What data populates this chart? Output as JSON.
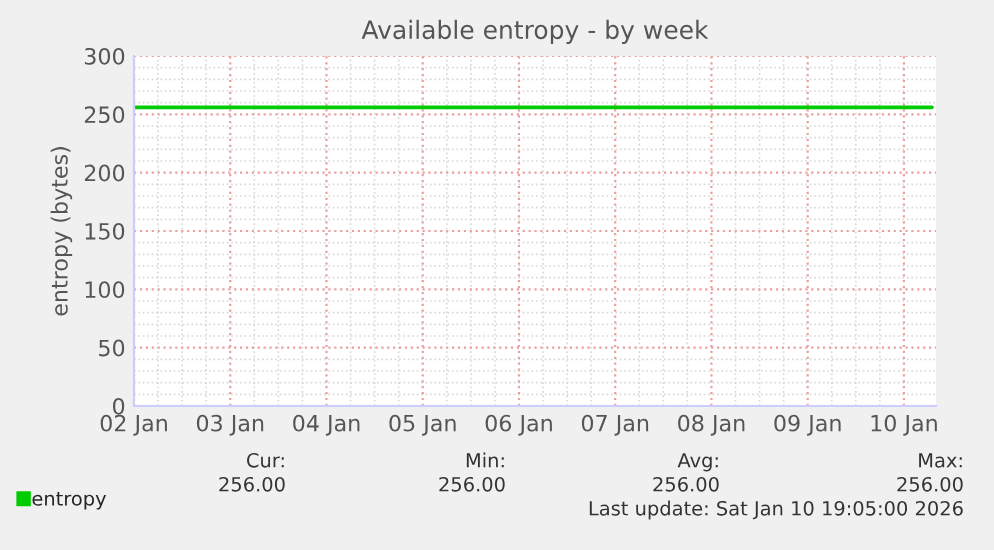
{
  "chart_data": {
    "type": "line",
    "title": "Available entropy - by week",
    "ylabel": "entropy (bytes)",
    "series": [
      {
        "name": "entropy",
        "color": "#00cc00",
        "x": [
          "2026-01-02T00:00",
          "2026-01-10T07:00"
        ],
        "values": [
          256,
          256
        ]
      }
    ],
    "xlim": [
      "2026-01-02T00:00",
      "2026-01-10T08:00"
    ],
    "xticks": [
      {
        "value": "2026-01-02",
        "label": "02 Jan"
      },
      {
        "value": "2026-01-03",
        "label": "03 Jan"
      },
      {
        "value": "2026-01-04",
        "label": "04 Jan"
      },
      {
        "value": "2026-01-05",
        "label": "05 Jan"
      },
      {
        "value": "2026-01-06",
        "label": "06 Jan"
      },
      {
        "value": "2026-01-07",
        "label": "07 Jan"
      },
      {
        "value": "2026-01-08",
        "label": "08 Jan"
      },
      {
        "value": "2026-01-09",
        "label": "09 Jan"
      },
      {
        "value": "2026-01-10",
        "label": "10 Jan"
      }
    ],
    "ylim": [
      0,
      300
    ],
    "yticks": [
      0,
      50,
      100,
      150,
      200,
      250,
      300
    ],
    "grid": true,
    "legend": "bottom left",
    "marker": "none",
    "line_style": "solid",
    "annotations": [
      "Cur:",
      "Min:",
      "Avg:",
      "Max:",
      "256.00",
      "256.00",
      "256.00",
      "256.00",
      "Last update: Sat Jan 10 19:05:00 2026"
    ]
  }
}
